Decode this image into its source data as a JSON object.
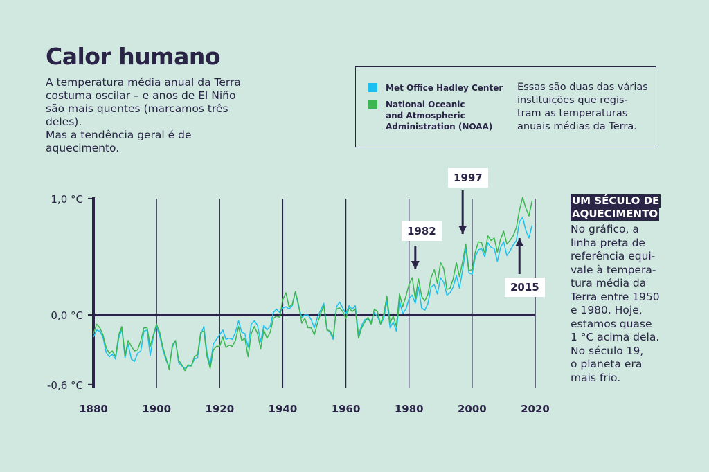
{
  "header": {
    "title": "Calor humano",
    "subtitle": "A temperatura média anual da Terra\ncostuma oscilar – e anos de El Niño\nsão mais quentes (marcamos três deles).\nMas a tendência geral é de aquecimento."
  },
  "legend": {
    "items": [
      {
        "label": "Met Office Hadley Center",
        "color": "#1cc0f0"
      },
      {
        "label": "National Oceanic\nand Atmospheric\nAdministration (NOAA)",
        "color": "#3cb650"
      }
    ],
    "note": "Essas são duas das várias\ninstituições que regis-\ntram as temperaturas\nanuais médias da Terra."
  },
  "sidebar": {
    "heading_line1": "UM SÉCULO DE",
    "heading_line2": "AQUECIMENTO",
    "text": "No gráfico, a\nlinha preta de\nreferência equi-\nvale à tempera-\ntura média da\nTerra entre 1950\ne 1980. Hoje,\nestamos quase\n1 °C acima dela.\nNo século 19,\no planeta era\nmais frio."
  },
  "chart_data": {
    "type": "line",
    "x_start": 1880,
    "x_end": 2019,
    "xlim": [
      1880,
      2020
    ],
    "ylim": [
      -0.6,
      1.0
    ],
    "x_ticks": [
      "1880",
      "1900",
      "1920",
      "1940",
      "1960",
      "1980",
      "2000",
      "2020"
    ],
    "y_ticks": [
      {
        "value": 1.0,
        "label": "1,0 °C"
      },
      {
        "value": 0.0,
        "label": "0,0 °C"
      },
      {
        "value": -0.6,
        "label": "-0,6 °C"
      }
    ],
    "grid": "vertical",
    "annotations": [
      {
        "year": "1982"
      },
      {
        "year": "1997"
      },
      {
        "year": "2015"
      }
    ],
    "series": [
      {
        "name": "Met Office Hadley Center",
        "color": "#1cc0f0",
        "values": [
          -0.19,
          -0.13,
          -0.14,
          -0.19,
          -0.32,
          -0.36,
          -0.34,
          -0.38,
          -0.2,
          -0.12,
          -0.37,
          -0.25,
          -0.38,
          -0.4,
          -0.33,
          -0.31,
          -0.14,
          -0.13,
          -0.35,
          -0.18,
          -0.1,
          -0.18,
          -0.3,
          -0.39,
          -0.45,
          -0.28,
          -0.22,
          -0.41,
          -0.44,
          -0.46,
          -0.44,
          -0.44,
          -0.38,
          -0.37,
          -0.17,
          -0.1,
          -0.33,
          -0.43,
          -0.25,
          -0.21,
          -0.17,
          -0.13,
          -0.21,
          -0.2,
          -0.21,
          -0.15,
          -0.05,
          -0.15,
          -0.16,
          -0.28,
          -0.08,
          -0.05,
          -0.09,
          -0.23,
          -0.09,
          -0.13,
          -0.1,
          0.02,
          0.05,
          0.02,
          0.06,
          0.07,
          0.05,
          0.08,
          0.2,
          0.07,
          -0.02,
          0.0,
          0.0,
          -0.04,
          -0.11,
          -0.02,
          0.04,
          0.1,
          -0.12,
          -0.15,
          -0.21,
          0.07,
          0.11,
          0.06,
          0.01,
          0.08,
          0.05,
          0.08,
          -0.17,
          -0.09,
          -0.04,
          -0.04,
          -0.06,
          0.02,
          -0.01,
          -0.08,
          -0.03,
          0.12,
          -0.11,
          -0.06,
          -0.14,
          0.12,
          0.01,
          0.05,
          0.14,
          0.17,
          0.1,
          0.24,
          0.06,
          0.04,
          0.1,
          0.24,
          0.26,
          0.18,
          0.32,
          0.28,
          0.17,
          0.19,
          0.24,
          0.34,
          0.23,
          0.39,
          0.57,
          0.36,
          0.35,
          0.5,
          0.56,
          0.57,
          0.5,
          0.62,
          0.58,
          0.57,
          0.46,
          0.58,
          0.63,
          0.51,
          0.55,
          0.6,
          0.64,
          0.8,
          0.84,
          0.73,
          0.66,
          0.77
        ]
      },
      {
        "name": "National Oceanic and Atmospheric Administration (NOAA)",
        "color": "#3cb650",
        "values": [
          -0.16,
          -0.08,
          -0.11,
          -0.17,
          -0.28,
          -0.33,
          -0.31,
          -0.36,
          -0.17,
          -0.1,
          -0.35,
          -0.22,
          -0.27,
          -0.31,
          -0.3,
          -0.22,
          -0.11,
          -0.11,
          -0.27,
          -0.17,
          -0.08,
          -0.15,
          -0.28,
          -0.37,
          -0.47,
          -0.26,
          -0.22,
          -0.39,
          -0.43,
          -0.48,
          -0.43,
          -0.44,
          -0.36,
          -0.34,
          -0.15,
          -0.14,
          -0.36,
          -0.46,
          -0.3,
          -0.27,
          -0.27,
          -0.19,
          -0.28,
          -0.26,
          -0.27,
          -0.22,
          -0.1,
          -0.22,
          -0.2,
          -0.36,
          -0.16,
          -0.1,
          -0.16,
          -0.29,
          -0.13,
          -0.2,
          -0.15,
          -0.03,
          -0.01,
          -0.02,
          0.13,
          0.19,
          0.07,
          0.09,
          0.2,
          0.09,
          -0.07,
          -0.03,
          -0.11,
          -0.11,
          -0.17,
          -0.07,
          0.01,
          0.08,
          -0.13,
          -0.14,
          -0.19,
          0.05,
          0.06,
          0.03,
          -0.03,
          0.06,
          0.03,
          0.05,
          -0.2,
          -0.11,
          -0.06,
          -0.02,
          -0.08,
          0.05,
          0.03,
          -0.08,
          0.01,
          0.16,
          -0.07,
          -0.01,
          -0.1,
          0.18,
          0.07,
          0.16,
          0.26,
          0.32,
          0.14,
          0.31,
          0.16,
          0.12,
          0.18,
          0.32,
          0.39,
          0.27,
          0.45,
          0.4,
          0.22,
          0.23,
          0.31,
          0.45,
          0.33,
          0.46,
          0.61,
          0.38,
          0.39,
          0.54,
          0.63,
          0.62,
          0.53,
          0.68,
          0.64,
          0.66,
          0.54,
          0.65,
          0.72,
          0.61,
          0.64,
          0.68,
          0.75,
          0.9,
          1.01,
          0.92,
          0.85,
          0.98
        ]
      }
    ]
  }
}
